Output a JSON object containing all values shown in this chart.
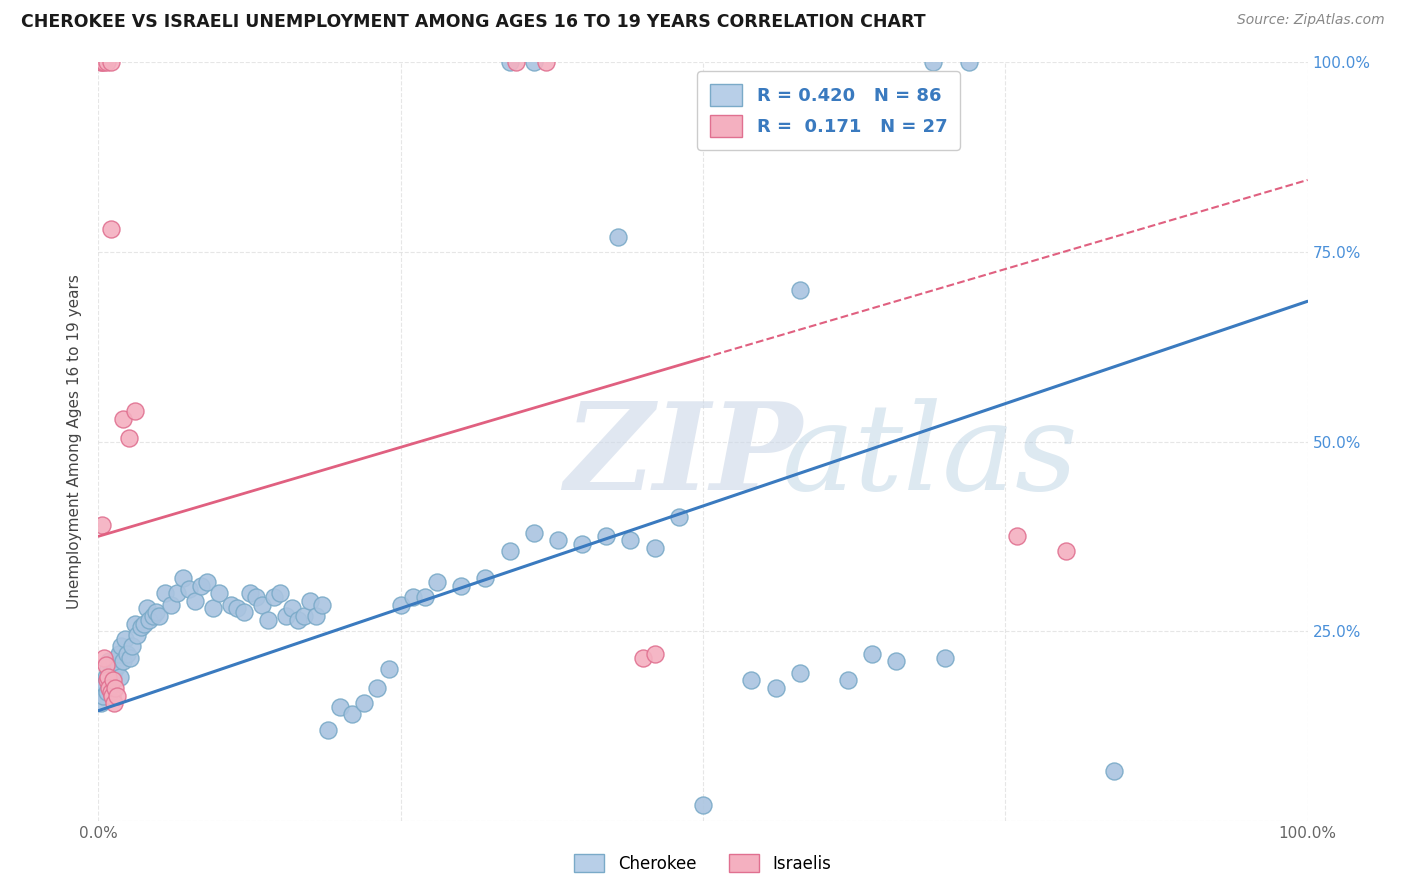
{
  "title": "CHEROKEE VS ISRAELI UNEMPLOYMENT AMONG AGES 16 TO 19 YEARS CORRELATION CHART",
  "source": "Source: ZipAtlas.com",
  "ylabel": "Unemployment Among Ages 16 to 19 years",
  "xlim": [
    0,
    1
  ],
  "ylim": [
    0,
    1
  ],
  "blue_scatter_color": "#aac4e0",
  "blue_scatter_edge": "#7aaac8",
  "pink_scatter_color": "#f4b0c0",
  "pink_scatter_edge": "#e07090",
  "blue_line_color": "#3a7abf",
  "pink_line_color": "#e06080",
  "watermark_zip_color": "#ccd8e8",
  "watermark_atlas_color": "#a0c0d8",
  "background_color": "#ffffff",
  "grid_color": "#e0e0e0",
  "cherokee_points": [
    [
      0.002,
      0.155
    ],
    [
      0.003,
      0.175
    ],
    [
      0.004,
      0.165
    ],
    [
      0.005,
      0.18
    ],
    [
      0.006,
      0.19
    ],
    [
      0.007,
      0.17
    ],
    [
      0.008,
      0.2
    ],
    [
      0.009,
      0.21
    ],
    [
      0.01,
      0.185
    ],
    [
      0.011,
      0.195
    ],
    [
      0.012,
      0.19
    ],
    [
      0.013,
      0.21
    ],
    [
      0.014,
      0.2
    ],
    [
      0.015,
      0.215
    ],
    [
      0.016,
      0.205
    ],
    [
      0.017,
      0.22
    ],
    [
      0.018,
      0.19
    ],
    [
      0.019,
      0.23
    ],
    [
      0.02,
      0.21
    ],
    [
      0.022,
      0.24
    ],
    [
      0.024,
      0.22
    ],
    [
      0.026,
      0.215
    ],
    [
      0.028,
      0.23
    ],
    [
      0.03,
      0.26
    ],
    [
      0.032,
      0.245
    ],
    [
      0.035,
      0.255
    ],
    [
      0.038,
      0.26
    ],
    [
      0.04,
      0.28
    ],
    [
      0.042,
      0.265
    ],
    [
      0.045,
      0.27
    ],
    [
      0.048,
      0.275
    ],
    [
      0.05,
      0.27
    ],
    [
      0.055,
      0.3
    ],
    [
      0.06,
      0.285
    ],
    [
      0.065,
      0.3
    ],
    [
      0.07,
      0.32
    ],
    [
      0.075,
      0.305
    ],
    [
      0.08,
      0.29
    ],
    [
      0.085,
      0.31
    ],
    [
      0.09,
      0.315
    ],
    [
      0.095,
      0.28
    ],
    [
      0.1,
      0.3
    ],
    [
      0.11,
      0.285
    ],
    [
      0.115,
      0.28
    ],
    [
      0.12,
      0.275
    ],
    [
      0.125,
      0.3
    ],
    [
      0.13,
      0.295
    ],
    [
      0.135,
      0.285
    ],
    [
      0.14,
      0.265
    ],
    [
      0.145,
      0.295
    ],
    [
      0.15,
      0.3
    ],
    [
      0.155,
      0.27
    ],
    [
      0.16,
      0.28
    ],
    [
      0.165,
      0.265
    ],
    [
      0.17,
      0.27
    ],
    [
      0.175,
      0.29
    ],
    [
      0.18,
      0.27
    ],
    [
      0.185,
      0.285
    ],
    [
      0.19,
      0.12
    ],
    [
      0.2,
      0.15
    ],
    [
      0.21,
      0.14
    ],
    [
      0.22,
      0.155
    ],
    [
      0.23,
      0.175
    ],
    [
      0.24,
      0.2
    ],
    [
      0.25,
      0.285
    ],
    [
      0.26,
      0.295
    ],
    [
      0.27,
      0.295
    ],
    [
      0.28,
      0.315
    ],
    [
      0.3,
      0.31
    ],
    [
      0.32,
      0.32
    ],
    [
      0.34,
      0.355
    ],
    [
      0.36,
      0.38
    ],
    [
      0.38,
      0.37
    ],
    [
      0.4,
      0.365
    ],
    [
      0.42,
      0.375
    ],
    [
      0.44,
      0.37
    ],
    [
      0.46,
      0.36
    ],
    [
      0.48,
      0.4
    ],
    [
      0.5,
      0.02
    ],
    [
      0.54,
      0.185
    ],
    [
      0.56,
      0.175
    ],
    [
      0.58,
      0.195
    ],
    [
      0.62,
      0.185
    ],
    [
      0.64,
      0.22
    ],
    [
      0.66,
      0.21
    ],
    [
      0.7,
      0.215
    ],
    [
      0.84,
      0.065
    ]
  ],
  "cherokee_top_points": [
    [
      0.34,
      1.0
    ],
    [
      0.36,
      1.0
    ],
    [
      0.69,
      1.0
    ],
    [
      0.72,
      1.0
    ]
  ],
  "cherokee_high_points": [
    [
      0.43,
      0.77
    ],
    [
      0.58,
      0.7
    ]
  ],
  "israelis_points": [
    [
      0.003,
      0.39
    ],
    [
      0.005,
      0.215
    ],
    [
      0.006,
      0.205
    ],
    [
      0.007,
      0.185
    ],
    [
      0.008,
      0.19
    ],
    [
      0.009,
      0.175
    ],
    [
      0.01,
      0.17
    ],
    [
      0.011,
      0.165
    ],
    [
      0.012,
      0.185
    ],
    [
      0.013,
      0.155
    ],
    [
      0.014,
      0.175
    ],
    [
      0.015,
      0.165
    ],
    [
      0.02,
      0.53
    ],
    [
      0.025,
      0.505
    ],
    [
      0.45,
      0.215
    ],
    [
      0.46,
      0.22
    ],
    [
      0.76,
      0.375
    ],
    [
      0.8,
      0.355
    ]
  ],
  "israelis_top_points": [
    [
      0.002,
      1.0
    ],
    [
      0.003,
      1.0
    ],
    [
      0.005,
      1.0
    ],
    [
      0.007,
      1.0
    ],
    [
      0.01,
      1.0
    ],
    [
      0.345,
      1.0
    ],
    [
      0.37,
      1.0
    ]
  ],
  "israelis_high_points": [
    [
      0.01,
      0.78
    ],
    [
      0.03,
      0.54
    ]
  ],
  "blue_line_x0": 0.0,
  "blue_line_x1": 1.0,
  "blue_line_y0": 0.145,
  "blue_line_y1": 0.685,
  "pink_line_x0": 0.0,
  "pink_line_x1": 1.0,
  "pink_line_y0": 0.375,
  "pink_line_y1": 0.845
}
